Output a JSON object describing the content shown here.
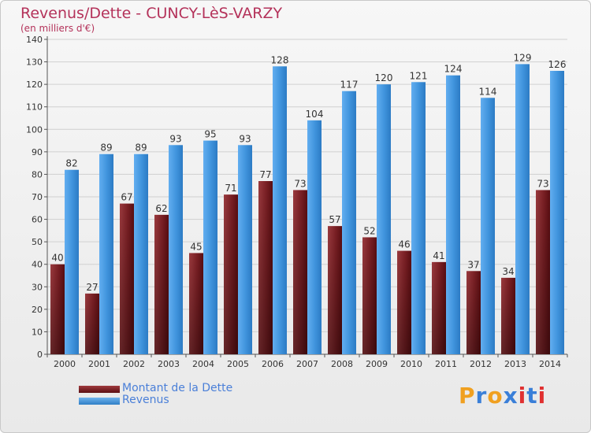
{
  "header": {
    "title": "Revenus/Dette - CUNCY-LèS-VARZY",
    "subtitle": "(en milliers d'€)"
  },
  "logo": {
    "text": "Proxiti",
    "letters": [
      "P",
      "r",
      "o",
      "x",
      "i",
      "t",
      "i"
    ],
    "colors": [
      "#f0a020",
      "#3a7fd8",
      "#f0a020",
      "#3a7fd8",
      "#e03030",
      "#3a7fd8",
      "#e03030"
    ]
  },
  "colors": {
    "dette": "#7a1f24",
    "revenus": "#3f93dc",
    "label": "#333333",
    "axis": "#555555"
  },
  "legend": [
    {
      "label": "Montant de la Dette",
      "series": "dette"
    },
    {
      "label": "Revenus",
      "series": "revenus"
    }
  ],
  "chart_data": {
    "type": "bar",
    "title": "Revenus/Dette - CUNCY-LèS-VARZY",
    "ylabel": "(en milliers d'€)",
    "xlabel": "",
    "ylim": [
      0,
      140
    ],
    "yticks": [
      0,
      10,
      20,
      30,
      40,
      50,
      60,
      70,
      80,
      90,
      100,
      110,
      120,
      130,
      140
    ],
    "grid": true,
    "legend_position": "bottom-left",
    "categories": [
      "2000",
      "2001",
      "2002",
      "2003",
      "2004",
      "2005",
      "2006",
      "2007",
      "2008",
      "2009",
      "2010",
      "2011",
      "2012",
      "2013",
      "2014"
    ],
    "series": [
      {
        "name": "Montant de la Dette",
        "key": "dette",
        "values": [
          40,
          27,
          67,
          62,
          45,
          71,
          77,
          73,
          57,
          52,
          46,
          41,
          37,
          34,
          73
        ]
      },
      {
        "name": "Revenus",
        "key": "revenus",
        "values": [
          82,
          89,
          89,
          93,
          95,
          93,
          128,
          104,
          117,
          120,
          121,
          124,
          114,
          129,
          126
        ]
      }
    ]
  }
}
